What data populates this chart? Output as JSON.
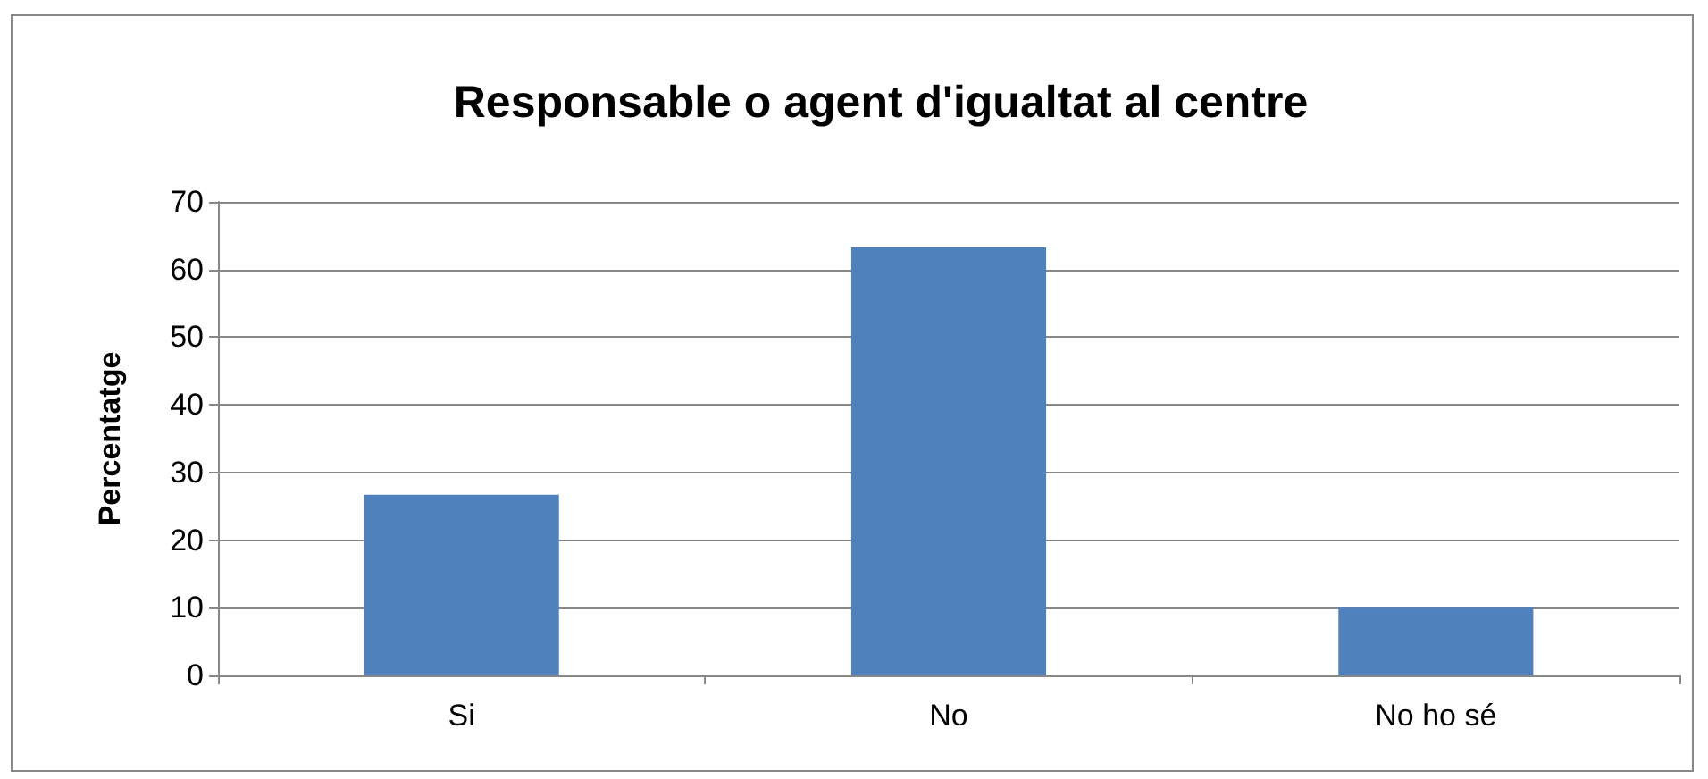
{
  "chart_data": {
    "type": "bar",
    "title": "Responsable o agent d'igualtat al centre",
    "ylabel": "Percentatge",
    "categories": [
      "Si",
      "No",
      "No ho sé"
    ],
    "series": [
      {
        "color": "#4f81bd",
        "values": [
          26.7,
          63.3,
          10
        ]
      }
    ],
    "ylim": [
      0,
      70
    ],
    "yticks": [
      0,
      10,
      20,
      30,
      40,
      50,
      60,
      70
    ],
    "grid": "y"
  }
}
